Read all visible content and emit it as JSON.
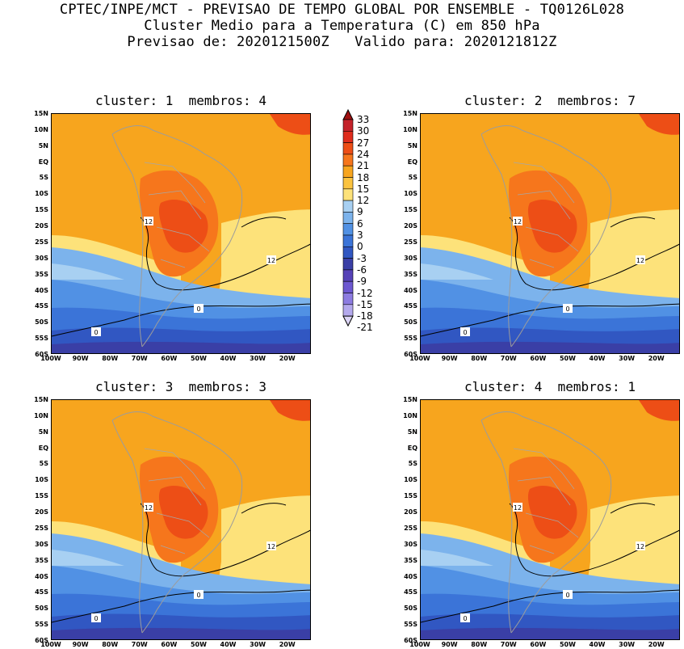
{
  "header": {
    "line1": "CPTEC/INPE/MCT - PREVISAO DE TEMPO GLOBAL POR ENSEMBLE - TQ0126L028",
    "line2": "Cluster Medio para a Temperatura (C) em 850 hPa",
    "line3": "Previsao de: 2020121500Z   Valido para: 2020121812Z"
  },
  "panels": [
    {
      "title": "cluster: 1  membros: 4"
    },
    {
      "title": "cluster: 2  membros: 7"
    },
    {
      "title": "cluster: 3  membros: 3"
    },
    {
      "title": "cluster: 4  membros: 1"
    }
  ],
  "axes": {
    "lat_labels": [
      "15N",
      "10N",
      "5N",
      "EQ",
      "5S",
      "10S",
      "15S",
      "20S",
      "25S",
      "30S",
      "35S",
      "40S",
      "45S",
      "50S",
      "55S",
      "60S"
    ],
    "lon_labels": [
      "100W",
      "90W",
      "80W",
      "70W",
      "60W",
      "50W",
      "40W",
      "30W",
      "20W"
    ]
  },
  "colorbar": {
    "labels": [
      "33",
      "30",
      "27",
      "24",
      "21",
      "18",
      "15",
      "12",
      "9",
      "6",
      "3",
      "0",
      "-3",
      "-6",
      "-9",
      "-12",
      "-15",
      "-18",
      "-21"
    ],
    "colors": [
      "#a01010",
      "#c4222a",
      "#df2c1c",
      "#ed4e16",
      "#f6761c",
      "#f7a51e",
      "#fbc33f",
      "#fde27a",
      "#a8d0f2",
      "#7cb3ec",
      "#5191e4",
      "#3b74d8",
      "#3157c2",
      "#3a3fa6",
      "#5642b8",
      "#6d58d1",
      "#8d7ce1",
      "#b4a9ed",
      "#dcd5f6"
    ]
  },
  "chart_data": [
    {
      "type": "heatmap",
      "title": "cluster: 1  membros: 4",
      "variable": "Temperatura (C) em 850 hPa",
      "xlim": [
        -100,
        -12
      ],
      "ylim": [
        -60,
        15
      ],
      "contours": [
        0,
        12
      ],
      "levels": [
        -21,
        -18,
        -15,
        -12,
        -9,
        -6,
        -3,
        0,
        3,
        6,
        9,
        12,
        15,
        18,
        21,
        24,
        27,
        30,
        33
      ]
    },
    {
      "type": "heatmap",
      "title": "cluster: 2  membros: 7",
      "variable": "Temperatura (C) em 850 hPa",
      "xlim": [
        -100,
        -12
      ],
      "ylim": [
        -60,
        15
      ],
      "contours": [
        0,
        12
      ],
      "levels": [
        -21,
        -18,
        -15,
        -12,
        -9,
        -6,
        -3,
        0,
        3,
        6,
        9,
        12,
        15,
        18,
        21,
        24,
        27,
        30,
        33
      ]
    },
    {
      "type": "heatmap",
      "title": "cluster: 3  membros: 3",
      "variable": "Temperatura (C) em 850 hPa",
      "xlim": [
        -100,
        -12
      ],
      "ylim": [
        -60,
        15
      ],
      "contours": [
        0,
        12
      ],
      "levels": [
        -21,
        -18,
        -15,
        -12,
        -9,
        -6,
        -3,
        0,
        3,
        6,
        9,
        12,
        15,
        18,
        21,
        24,
        27,
        30,
        33
      ]
    },
    {
      "type": "heatmap",
      "title": "cluster: 4  membros: 1",
      "variable": "Temperatura (C) em 850 hPa",
      "xlim": [
        -100,
        -12
      ],
      "ylim": [
        -60,
        15
      ],
      "contours": [
        0,
        12
      ],
      "levels": [
        -21,
        -18,
        -15,
        -12,
        -9,
        -6,
        -3,
        0,
        3,
        6,
        9,
        12,
        15,
        18,
        21,
        24,
        27,
        30,
        33
      ]
    }
  ],
  "contour_labels": {
    "c12": "12",
    "c0": "0"
  }
}
